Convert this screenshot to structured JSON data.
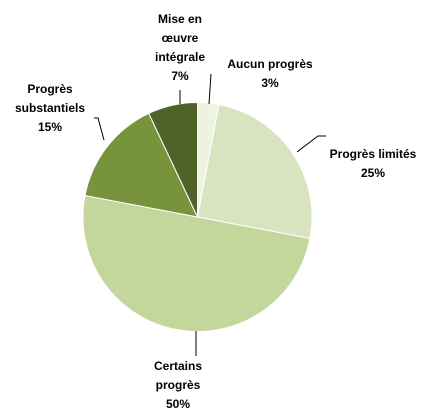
{
  "chart_data": {
    "type": "pie",
    "categories": [
      "Aucun progrès",
      "Progrès limités",
      "Certains progrès",
      "Progrès substantiels",
      "Mise en œuvre intégrale"
    ],
    "values": [
      3,
      25,
      50,
      15,
      7
    ],
    "value_labels": [
      "3%",
      "25%",
      "50%",
      "15%",
      "7%"
    ],
    "colors": [
      "#eef3e1",
      "#d8e4bf",
      "#c3d69b",
      "#77933c",
      "#4f6228"
    ]
  }
}
